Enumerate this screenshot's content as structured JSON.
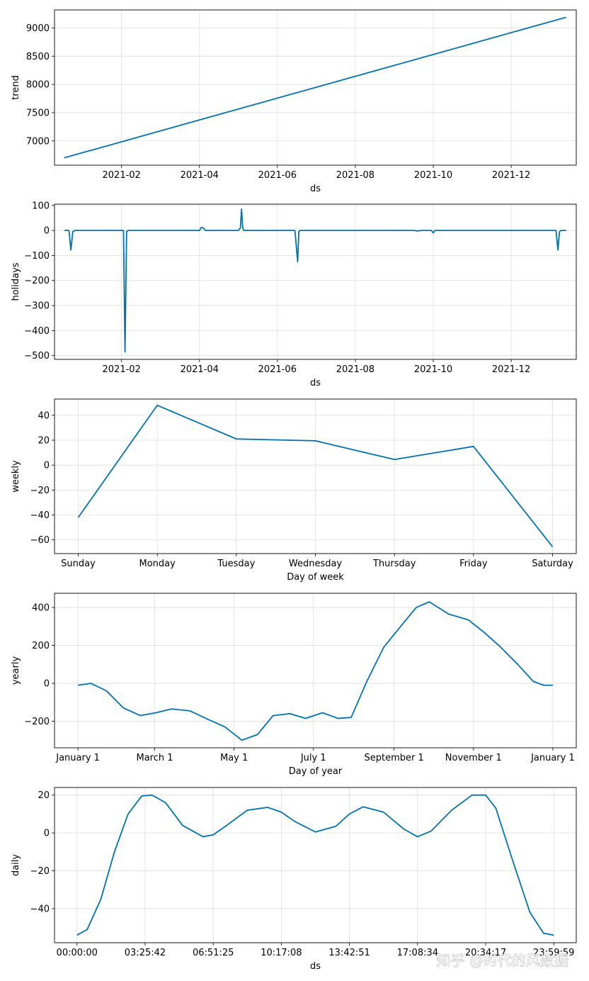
{
  "watermark": "知乎 @时代的风数据",
  "colors": {
    "line": "#0072B2",
    "grid": "#dddddd",
    "frame": "#000000"
  },
  "chart_data": [
    {
      "id": "trend",
      "type": "line",
      "xlabel": "ds",
      "ylabel": "trend",
      "xticks": [
        {
          "label": "2021-02",
          "x": 1
        },
        {
          "label": "2021-04",
          "x": 3
        },
        {
          "label": "2021-06",
          "x": 5
        },
        {
          "label": "2021-08",
          "x": 7
        },
        {
          "label": "2021-10",
          "x": 9
        },
        {
          "label": "2021-12",
          "x": 11
        }
      ],
      "xlim": [
        -0.72,
        12.67
      ],
      "yticks": [
        7000,
        7500,
        8000,
        8500,
        9000
      ],
      "ylim": [
        6570,
        9320
      ],
      "series": [
        {
          "x": [
            -0.47,
            12.41
          ],
          "y": [
            6700,
            9190
          ]
        }
      ]
    },
    {
      "id": "holidays",
      "type": "line",
      "xlabel": "ds",
      "ylabel": "holidays",
      "xticks": [
        {
          "label": "2021-02",
          "x": 1
        },
        {
          "label": "2021-04",
          "x": 3
        },
        {
          "label": "2021-06",
          "x": 5
        },
        {
          "label": "2021-08",
          "x": 7
        },
        {
          "label": "2021-10",
          "x": 9
        },
        {
          "label": "2021-12",
          "x": 11
        }
      ],
      "xlim": [
        -0.72,
        12.67
      ],
      "yticks": [
        -500,
        -400,
        -300,
        -200,
        -100,
        0,
        100
      ],
      "ylim": [
        -515,
        105
      ],
      "series": [
        {
          "x": [
            -0.47,
            -0.35,
            -0.3,
            -0.25,
            -0.2,
            1.05,
            1.09,
            1.13,
            1.17,
            2.0,
            3.0,
            3.05,
            3.1,
            3.15,
            3.2,
            4.0,
            4.05,
            4.08,
            4.11,
            4.14,
            5.45,
            5.52,
            5.55,
            5.58,
            8.5,
            8.6,
            8.7,
            8.95,
            9.0,
            9.03,
            9.06,
            9.5,
            10.0,
            12.15,
            12.2,
            12.24,
            12.28,
            12.41
          ],
          "y": [
            0,
            0,
            -78,
            -5,
            0,
            0,
            -485,
            -5,
            0,
            0,
            0,
            12,
            10,
            0,
            0,
            0,
            10,
            85,
            10,
            0,
            0,
            -125,
            -5,
            0,
            0,
            -2,
            0,
            0,
            -10,
            -2,
            0,
            0,
            0,
            0,
            -78,
            -5,
            0,
            0
          ]
        }
      ]
    },
    {
      "id": "weekly",
      "type": "line",
      "xlabel": "Day of week",
      "ylabel": "weekly",
      "categories": [
        "Sunday",
        "Monday",
        "Tuesday",
        "Wednesday",
        "Thursday",
        "Friday",
        "Saturday"
      ],
      "xlim": [
        -0.3,
        6.3
      ],
      "yticks": [
        -60,
        -40,
        -20,
        0,
        20,
        40
      ],
      "ylim": [
        -71,
        53
      ],
      "series": [
        {
          "values": [
            -42,
            48,
            21,
            19.5,
            4.5,
            15,
            -65.5
          ]
        }
      ]
    },
    {
      "id": "yearly",
      "type": "line",
      "xlabel": "Day of year",
      "ylabel": "yearly",
      "xticks": [
        {
          "label": "January 1",
          "x": 0
        },
        {
          "label": "March 1",
          "x": 59
        },
        {
          "label": "May 1",
          "x": 120
        },
        {
          "label": "July 1",
          "x": 181
        },
        {
          "label": "September 1",
          "x": 243
        },
        {
          "label": "November 1",
          "x": 304
        },
        {
          "label": "January 1",
          "x": 365
        }
      ],
      "xlim": [
        -18,
        383
      ],
      "yticks": [
        -200,
        0,
        200,
        400
      ],
      "ylim": [
        -340,
        475
      ],
      "series": [
        {
          "x": [
            0,
            10,
            22,
            35,
            48,
            60,
            72,
            86,
            100,
            113,
            126,
            138,
            150,
            163,
            175,
            188,
            200,
            210,
            222,
            235,
            248,
            260,
            270,
            285,
            300,
            312,
            325,
            338,
            350,
            358,
            365
          ],
          "y": [
            -10,
            0,
            -40,
            -130,
            -170,
            -155,
            -135,
            -145,
            -190,
            -230,
            -300,
            -270,
            -170,
            -160,
            -185,
            -155,
            -185,
            -180,
            10,
            190,
            300,
            400,
            430,
            365,
            335,
            270,
            190,
            100,
            10,
            -10,
            -10
          ]
        }
      ]
    },
    {
      "id": "daily",
      "type": "line",
      "xlabel": "ds",
      "ylabel": "daily",
      "xticks": [
        {
          "label": "00:00:00",
          "x": 0
        },
        {
          "label": "03:25:42",
          "x": 1
        },
        {
          "label": "06:51:25",
          "x": 2
        },
        {
          "label": "10:17:08",
          "x": 3
        },
        {
          "label": "13:42:51",
          "x": 4
        },
        {
          "label": "17:08:34",
          "x": 5
        },
        {
          "label": "20:34:17",
          "x": 6
        },
        {
          "label": "23:59:59",
          "x": 7
        }
      ],
      "xlim": [
        -0.33,
        7.33
      ],
      "yticks": [
        -40,
        -20,
        0,
        20
      ],
      "ylim": [
        -58,
        24
      ],
      "series": [
        {
          "x": [
            0,
            0.15,
            0.35,
            0.55,
            0.75,
            0.95,
            1.1,
            1.3,
            1.55,
            1.85,
            2.0,
            2.2,
            2.5,
            2.8,
            3.0,
            3.2,
            3.5,
            3.8,
            4.0,
            4.2,
            4.5,
            4.8,
            5.0,
            5.2,
            5.5,
            5.8,
            6.0,
            6.15,
            6.4,
            6.65,
            6.85,
            7.0
          ],
          "y": [
            -54,
            -51,
            -35,
            -10,
            10,
            19.5,
            20,
            16,
            4,
            -2,
            -1,
            4,
            12,
            13.5,
            11,
            6,
            0.5,
            3.5,
            10,
            13.8,
            11,
            2,
            -2,
            1,
            12,
            20,
            20,
            13,
            -15,
            -42,
            -53,
            -54
          ]
        }
      ]
    }
  ]
}
